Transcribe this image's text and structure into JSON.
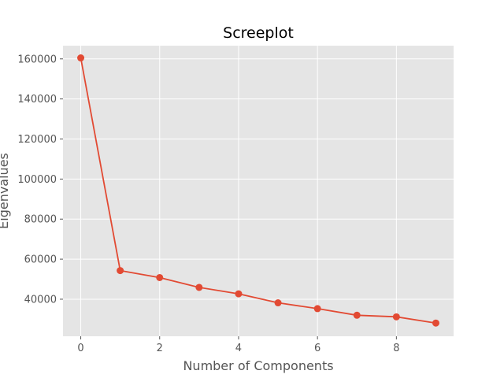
{
  "chart_data": {
    "type": "line",
    "title": "Screeplot",
    "xlabel": "Number of Components",
    "ylabel": "Eigenvalues",
    "x": [
      0,
      1,
      2,
      3,
      4,
      5,
      6,
      7,
      8,
      9
    ],
    "series": [
      {
        "values": [
          160500,
          54300,
          50800,
          45900,
          42700,
          38200,
          35300,
          32000,
          31200,
          28100
        ],
        "color": "#E24A33"
      }
    ],
    "xlim": [
      -0.45,
      9.45
    ],
    "ylim": [
      21500,
      166600
    ],
    "xticks": [
      0,
      2,
      4,
      6,
      8
    ],
    "yticks": [
      40000,
      60000,
      80000,
      100000,
      120000,
      140000,
      160000
    ],
    "grid": true,
    "background_color": "#E5E5E5",
    "grid_color": "#FFFFFF"
  }
}
